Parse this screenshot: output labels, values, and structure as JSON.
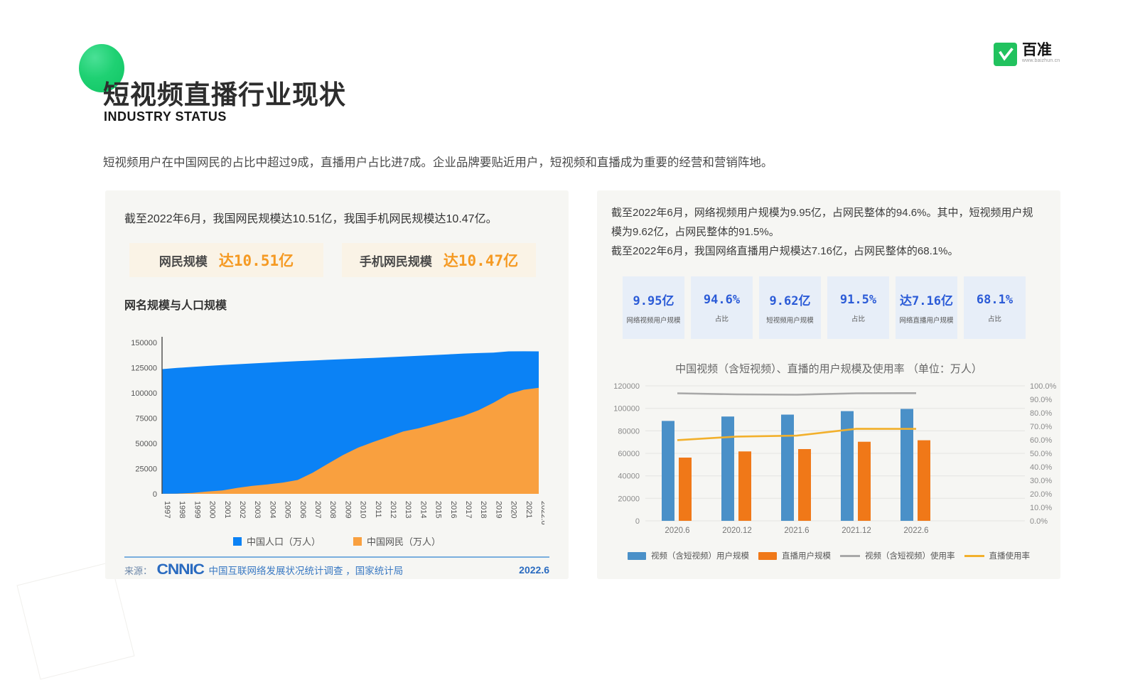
{
  "page": {
    "title": "短视频直播行业现状",
    "subtitle": "INDUSTRY STATUS",
    "intro": "短视频用户在中国网民的占比中超过9成，直播用户占比进7成。企业品牌要贴近用户，短视频和直播成为重要的经营和营销阵地。"
  },
  "brand": {
    "name": "百准",
    "url": "www.baizhun.cn"
  },
  "left_panel": {
    "headline": "截至2022年6月，我国网民规模达10.51亿，我国手机网民规模达10.47亿。",
    "stats": [
      {
        "label": "网民规模",
        "value": "达10.51亿"
      },
      {
        "label": "手机网民规模",
        "value": "达10.47亿"
      }
    ],
    "chart_title": "网名规模与人口规模",
    "source_prefix": "来源：",
    "source_logo": "CNNIC",
    "source_text": "中国互联网络发展状况统计调查 ，国家统计局",
    "source_date": "2022.6"
  },
  "right_panel": {
    "headline1": "截至2022年6月，网络视频用户规模为9.95亿，占网民整体的94.6%。其中，短视频用户规模为9.62亿，占网民整体的91.5%。",
    "headline2": "截至2022年6月，我国网络直播用户规模达7.16亿，占网民整体的68.1%。",
    "stats": [
      {
        "value": "9.95亿",
        "label": "网络视频用户规模"
      },
      {
        "value": "94.6%",
        "label": "占比"
      },
      {
        "value": "9.62亿",
        "label": "短视频用户规模"
      },
      {
        "value": "91.5%",
        "label": "占比"
      },
      {
        "value": "达7.16亿",
        "label": "网络直播用户规模"
      },
      {
        "value": "68.1%",
        "label": "占比"
      }
    ]
  },
  "chart_data": [
    {
      "type": "area",
      "title": "网名规模与人口规模",
      "x": [
        "1997",
        "1998",
        "1999",
        "2000",
        "2001",
        "2002",
        "2003",
        "2004",
        "2005",
        "2006",
        "2007",
        "2008",
        "2009",
        "2010",
        "2011",
        "2012",
        "2013",
        "2014",
        "2015",
        "2016",
        "2017",
        "2018",
        "2019",
        "2020",
        "2021",
        "2022.6"
      ],
      "series": [
        {
          "name": "中国人口（万人）",
          "color": "#0b82f5",
          "values": [
            123626,
            124761,
            125786,
            126743,
            127627,
            128453,
            129227,
            129988,
            130756,
            131448,
            132129,
            132802,
            133450,
            134091,
            134735,
            135404,
            136072,
            136782,
            137462,
            138271,
            139008,
            139538,
            140005,
            141178,
            141260,
            141175
          ]
        },
        {
          "name": "中国网民（万人）",
          "color": "#f9a03f",
          "values": [
            62,
            210,
            890,
            2250,
            3370,
            5910,
            7950,
            9400,
            11100,
            13700,
            21000,
            29800,
            38400,
            45730,
            51310,
            56400,
            61758,
            64875,
            68826,
            73125,
            77198,
            82851,
            90359,
            98899,
            103195,
            105100
          ]
        }
      ],
      "ylim": [
        0,
        150000
      ],
      "yticks": [
        0,
        25000,
        50000,
        75000,
        100000,
        125000,
        150000
      ],
      "grid": false,
      "legend_position": "bottom"
    },
    {
      "type": "bar+line",
      "title": "中国视频（含短视频）、直播的用户规模及使用率 （单位：万人）",
      "categories": [
        "2020.6",
        "2020.12",
        "2021.6",
        "2021.12",
        "2022.6"
      ],
      "bar_series": [
        {
          "name": "视频（含短视频）用户规模",
          "color": "#4a90c8",
          "axis": "left",
          "values": [
            88800,
            92700,
            94400,
            97500,
            99500
          ]
        },
        {
          "name": "直播用户规模",
          "color": "#f07818",
          "axis": "left",
          "values": [
            56200,
            61700,
            63800,
            70300,
            71600
          ]
        }
      ],
      "line_series": [
        {
          "name": "视频（含短视频）使用率",
          "color": "#a8a8a8",
          "axis": "right",
          "values": [
            94.5,
            93.7,
            93.4,
            94.5,
            94.6
          ]
        },
        {
          "name": "直播使用率",
          "color": "#f2b02c",
          "axis": "right",
          "values": [
            59.8,
            62.4,
            63.1,
            68.2,
            68.1
          ]
        }
      ],
      "ylim_left": [
        0,
        120000
      ],
      "yticks_left": [
        0,
        20000,
        40000,
        60000,
        80000,
        100000,
        120000
      ],
      "ylim_right": [
        0,
        100
      ],
      "yticks_right": [
        "0.0%",
        "10.0%",
        "20.0%",
        "30.0%",
        "40.0%",
        "50.0%",
        "60.0%",
        "70.0%",
        "80.0%",
        "90.0%",
        "100.0%"
      ],
      "grid": true,
      "legend_position": "bottom"
    }
  ],
  "colors": {
    "accent_green": "#1fd173",
    "brand_green": "#21c25e",
    "area_population_blue": "#0b82f5",
    "area_netizen_orange": "#f9a03f",
    "bar_video_blue": "#4a90c8",
    "bar_live_orange": "#f07818",
    "line_video_gray": "#a8a8a8",
    "line_live_yellow": "#f2b02c",
    "stat_cream_bg": "#faf3e6",
    "stat_value_orange": "#f59a23",
    "stat_blue_bg": "#e7eef8",
    "stat_value_blue": "#2b5bd7",
    "panel_bg": "#f6f6f3",
    "source_blue": "#2a6bc0"
  }
}
